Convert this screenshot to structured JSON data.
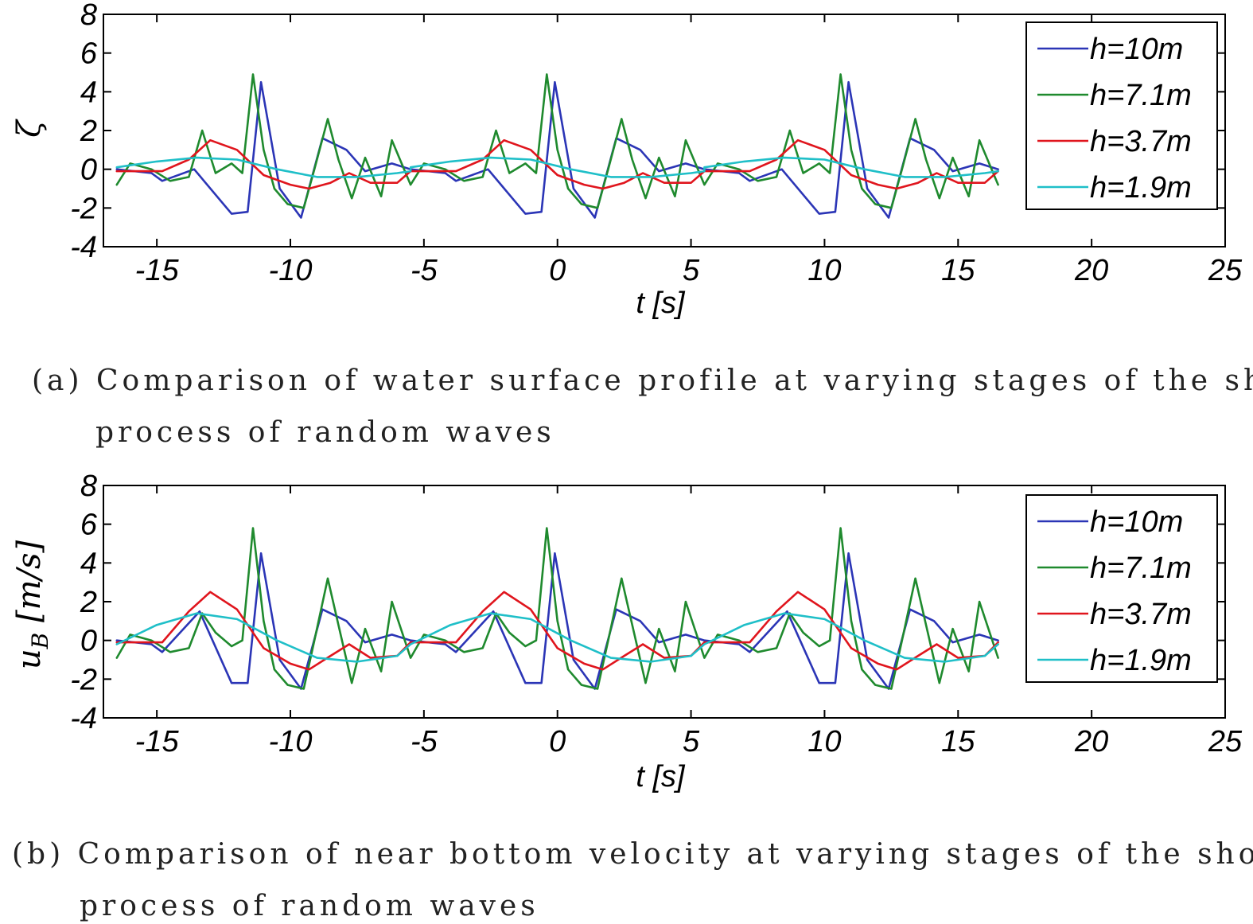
{
  "captions": {
    "a": {
      "line1": "(a) Comparison of water surface profile at varying stages of the shoaling",
      "line2": "process of random waves"
    },
    "b": {
      "line1": "(b) Comparison of near bottom velocity at varying stages of the shoaling",
      "line2": "process of random waves"
    }
  },
  "chart_data": [
    {
      "type": "line",
      "panel": "a",
      "title": "",
      "xlabel": "t [s]",
      "ylabel": "ζ",
      "xlim": [
        -17,
        25
      ],
      "ylim": [
        -4,
        8
      ],
      "xticks": [
        "-15",
        "-10",
        "-5",
        "0",
        "5",
        "10",
        "15",
        "20",
        "25"
      ],
      "yticks": [
        "-4",
        "-2",
        "0",
        "2",
        "4",
        "6",
        "8"
      ],
      "grid": false,
      "legend": "top-right",
      "period": 11,
      "series": [
        {
          "name": "h=10m",
          "color": "#2b35b6",
          "x": [
            -16.5,
            -15.2,
            -14.8,
            -13.6,
            -12.2,
            -11.6,
            -11.1,
            -10.4,
            -9.6,
            -8.8,
            -7.9,
            -7.2,
            -6.2,
            -5.5
          ],
          "y": [
            0.0,
            -0.2,
            -0.6,
            0.0,
            -2.3,
            -2.2,
            4.5,
            -1.0,
            -2.5,
            1.6,
            1.0,
            -0.1,
            0.3,
            0.0
          ]
        },
        {
          "name": "h=7.1m",
          "color": "#1f8a2e",
          "x": [
            -16.5,
            -16.0,
            -15.2,
            -14.5,
            -13.8,
            -13.3,
            -12.8,
            -12.2,
            -11.8,
            -11.4,
            -11.0,
            -10.6,
            -10.1,
            -9.5,
            -9.1,
            -8.6,
            -8.2,
            -7.7,
            -7.2,
            -6.6,
            -6.2,
            -5.5
          ],
          "y": [
            -0.8,
            0.3,
            0.0,
            -0.6,
            -0.4,
            2.0,
            -0.2,
            0.3,
            -0.2,
            4.9,
            1.0,
            -1.0,
            -1.8,
            -2.0,
            0.0,
            2.6,
            0.5,
            -1.5,
            0.6,
            -1.4,
            1.5,
            -0.8
          ]
        },
        {
          "name": "h=3.7m",
          "color": "#e0151d",
          "x": [
            -16.5,
            -14.8,
            -13.8,
            -13.0,
            -12.0,
            -11.0,
            -10.0,
            -9.3,
            -8.5,
            -7.8,
            -7.0,
            -6.0,
            -5.5
          ],
          "y": [
            -0.1,
            -0.1,
            0.5,
            1.5,
            1.0,
            -0.3,
            -0.8,
            -1.0,
            -0.7,
            -0.2,
            -0.7,
            -0.7,
            -0.1
          ]
        },
        {
          "name": "h=1.9m",
          "color": "#1fbfc8",
          "x": [
            -16.5,
            -15.0,
            -13.5,
            -12.0,
            -10.5,
            -9.0,
            -7.5,
            -6.0,
            -5.5
          ],
          "y": [
            0.1,
            0.4,
            0.6,
            0.5,
            0.0,
            -0.4,
            -0.4,
            -0.2,
            -0.1
          ]
        }
      ]
    },
    {
      "type": "line",
      "panel": "b",
      "title": "",
      "xlabel": "t [s]",
      "ylabel": "u_B [m/s]",
      "xlim": [
        -17,
        25
      ],
      "ylim": [
        -4,
        8
      ],
      "xticks": [
        "-15",
        "-10",
        "-5",
        "0",
        "5",
        "10",
        "15",
        "20",
        "25"
      ],
      "yticks": [
        "-4",
        "-2",
        "0",
        "2",
        "4",
        "6",
        "8"
      ],
      "grid": false,
      "legend": "top-right",
      "period": 11,
      "series": [
        {
          "name": "h=10m",
          "color": "#2b35b6",
          "x": [
            -16.5,
            -15.2,
            -14.8,
            -13.4,
            -12.2,
            -11.6,
            -11.1,
            -10.4,
            -9.6,
            -8.8,
            -7.9,
            -7.2,
            -6.2,
            -5.5
          ],
          "y": [
            0.0,
            -0.2,
            -0.6,
            1.5,
            -2.2,
            -2.2,
            4.5,
            -1.0,
            -2.5,
            1.6,
            1.0,
            -0.1,
            0.3,
            0.0
          ]
        },
        {
          "name": "h=7.1m",
          "color": "#1f8a2e",
          "x": [
            -16.5,
            -16.0,
            -15.2,
            -14.5,
            -13.8,
            -13.3,
            -12.8,
            -12.2,
            -11.8,
            -11.4,
            -11.0,
            -10.6,
            -10.1,
            -9.5,
            -9.1,
            -8.6,
            -8.2,
            -7.7,
            -7.2,
            -6.6,
            -6.2,
            -5.5
          ],
          "y": [
            -0.9,
            0.3,
            0.0,
            -0.6,
            -0.4,
            1.4,
            0.4,
            -0.3,
            0.0,
            5.8,
            1.0,
            -1.5,
            -2.3,
            -2.5,
            0.0,
            3.2,
            0.8,
            -2.2,
            0.6,
            -1.6,
            2.0,
            -0.9
          ]
        },
        {
          "name": "h=3.7m",
          "color": "#e0151d",
          "x": [
            -16.5,
            -14.8,
            -13.8,
            -13.0,
            -12.0,
            -11.0,
            -10.0,
            -9.3,
            -8.5,
            -7.8,
            -7.0,
            -6.0,
            -5.5
          ],
          "y": [
            -0.1,
            -0.1,
            1.5,
            2.5,
            1.6,
            -0.4,
            -1.2,
            -1.5,
            -0.8,
            -0.2,
            -0.9,
            -0.8,
            -0.1
          ]
        },
        {
          "name": "h=1.9m",
          "color": "#1fbfc8",
          "x": [
            -16.5,
            -15.0,
            -13.5,
            -12.0,
            -10.5,
            -9.0,
            -7.5,
            -6.0,
            -5.5
          ],
          "y": [
            -0.2,
            0.8,
            1.4,
            1.1,
            0.0,
            -0.9,
            -1.1,
            -0.8,
            -0.2
          ]
        }
      ]
    }
  ]
}
